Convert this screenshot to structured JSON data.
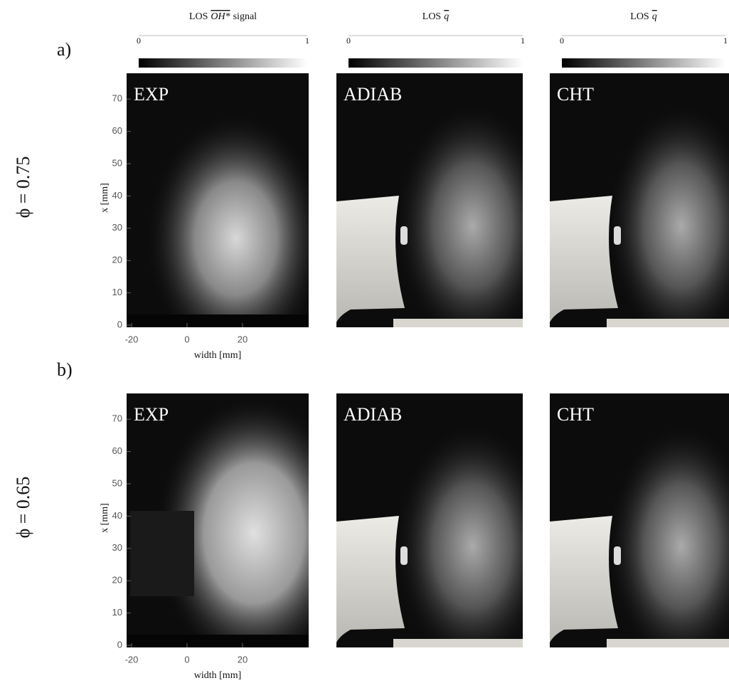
{
  "colorbars": [
    {
      "prefix": "LOS",
      "symbol": "OH*",
      "suffix": "signal",
      "min": "0",
      "max": "1"
    },
    {
      "prefix": "LOS",
      "symbol": "q",
      "suffix": "",
      "min": "0",
      "max": "1"
    },
    {
      "prefix": "LOS",
      "symbol": "q",
      "suffix": "",
      "min": "0",
      "max": "1"
    }
  ],
  "rows": [
    {
      "tag": "a)",
      "phi": "ϕ = 0.75",
      "panels": [
        "EXP",
        "ADIAB",
        "CHT"
      ],
      "ylabel": "x [mm]",
      "yticks": [
        0,
        10,
        20,
        30,
        40,
        50,
        60,
        70
      ],
      "xlabel": "width [mm]",
      "xticks": [
        -20,
        0,
        20
      ]
    },
    {
      "tag": "b)",
      "phi": "ϕ = 0.65",
      "panels": [
        "EXP",
        "ADIAB",
        "CHT"
      ],
      "ylabel": "x [mm]",
      "yticks": [
        0,
        10,
        20,
        30,
        40,
        50,
        60,
        70
      ],
      "xlabel": "width [mm]",
      "xticks": [
        -20,
        0,
        20
      ]
    }
  ]
}
